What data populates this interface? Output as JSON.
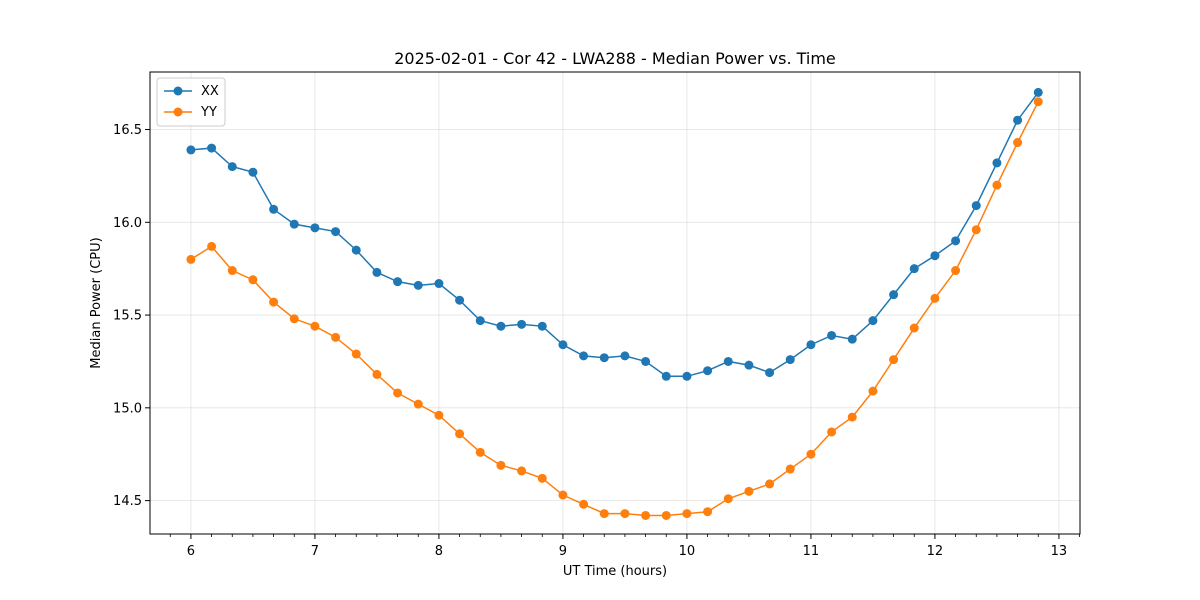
{
  "chart_data": {
    "type": "line",
    "title": "2025-02-01 - Cor 42 - LWA288 - Median Power vs. Time",
    "xlabel": "UT Time (hours)",
    "ylabel": "Median Power (CPU)",
    "xlim": [
      5.67,
      13.17
    ],
    "ylim": [
      14.32,
      16.81
    ],
    "xticks": [
      6,
      7,
      8,
      9,
      10,
      11,
      12,
      13
    ],
    "yticks": [
      14.5,
      15.0,
      15.5,
      16.0,
      16.5
    ],
    "xtick_labels": [
      "6",
      "7",
      "8",
      "9",
      "10",
      "11",
      "12",
      "13"
    ],
    "ytick_labels": [
      "14.5",
      "15.0",
      "15.5",
      "16.0",
      "16.5"
    ],
    "grid": true,
    "legend_position": "upper-left",
    "x": [
      6.0,
      6.1667,
      6.3333,
      6.5,
      6.6667,
      6.8333,
      7.0,
      7.1667,
      7.3333,
      7.5,
      7.6667,
      7.8333,
      8.0,
      8.1667,
      8.3333,
      8.5,
      8.6667,
      8.8333,
      9.0,
      9.1667,
      9.3333,
      9.5,
      9.6667,
      9.8333,
      10.0,
      10.1667,
      10.3333,
      10.5,
      10.6667,
      10.8333,
      11.0,
      11.1667,
      11.3333,
      11.5,
      11.6667,
      11.8333,
      12.0,
      12.1667,
      12.3333,
      12.5,
      12.6667,
      12.8333
    ],
    "series": [
      {
        "name": "XX",
        "color": "#1f77b4",
        "values": [
          16.39,
          16.4,
          16.3,
          16.27,
          16.07,
          15.99,
          15.97,
          15.95,
          15.85,
          15.73,
          15.68,
          15.66,
          15.67,
          15.58,
          15.47,
          15.44,
          15.45,
          15.44,
          15.34,
          15.28,
          15.27,
          15.28,
          15.25,
          15.17,
          15.17,
          15.2,
          15.25,
          15.23,
          15.19,
          15.26,
          15.34,
          15.39,
          15.37,
          15.47,
          15.61,
          15.75,
          15.82,
          15.9,
          16.09,
          16.32,
          16.55,
          16.7
        ]
      },
      {
        "name": "YY",
        "color": "#ff7f0e",
        "values": [
          15.8,
          15.87,
          15.74,
          15.69,
          15.57,
          15.48,
          15.44,
          15.38,
          15.29,
          15.18,
          15.08,
          15.02,
          14.96,
          14.86,
          14.76,
          14.69,
          14.66,
          14.62,
          14.53,
          14.48,
          14.43,
          14.43,
          14.42,
          14.42,
          14.43,
          14.44,
          14.51,
          14.55,
          14.59,
          14.67,
          14.75,
          14.87,
          14.95,
          15.09,
          15.26,
          15.43,
          15.59,
          15.74,
          15.96,
          16.2,
          16.43,
          16.65
        ]
      }
    ]
  }
}
